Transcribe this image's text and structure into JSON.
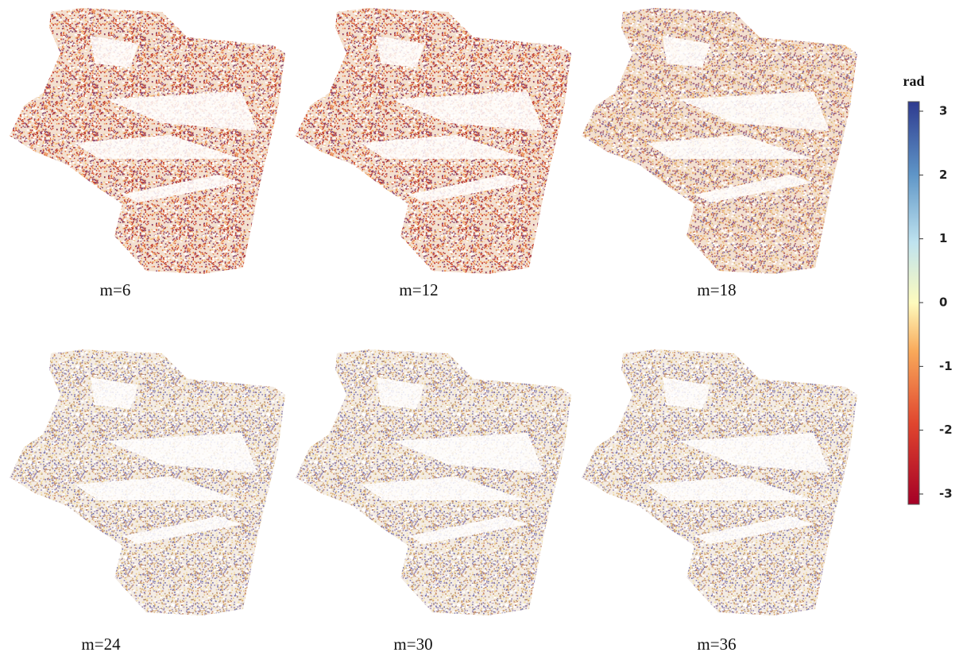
{
  "panels": [
    {
      "label": "m=6"
    },
    {
      "label": "m=12"
    },
    {
      "label": "m=18"
    },
    {
      "label": "m=24"
    },
    {
      "label": "m=30"
    },
    {
      "label": "m=36"
    }
  ],
  "colorbar": {
    "title": "rad",
    "ticks": [
      3,
      2,
      1,
      0,
      -1,
      -2,
      -3
    ]
  }
}
